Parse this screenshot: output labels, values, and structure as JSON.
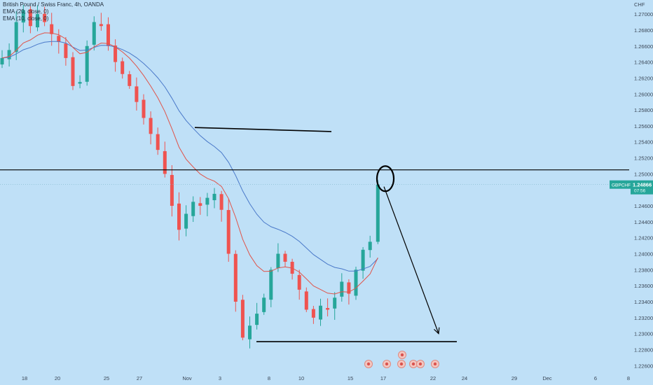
{
  "legend": {
    "title": "British Pound / Swiss Franc, 4h, OANDA",
    "ema20": "EMA (20, close, 0)",
    "ema10": "EMA (10, close, 0)"
  },
  "price_axis": {
    "currency": "CHF",
    "ticks": [
      "1.27000",
      "1.26800",
      "1.26600",
      "1.26400",
      "1.26200",
      "1.26000",
      "1.25800",
      "1.25600",
      "1.25400",
      "1.25200",
      "1.25000",
      "1.24800",
      "1.24600",
      "1.24400",
      "1.24200",
      "1.24000",
      "1.23800",
      "1.23600",
      "1.23400",
      "1.23200",
      "1.23000",
      "1.22800",
      "1.22600"
    ]
  },
  "time_axis": {
    "ticks": [
      "18",
      "20",
      "25",
      "27",
      "Nov",
      "3",
      "8",
      "10",
      "15",
      "17",
      "22",
      "24",
      "29",
      "Dec",
      "6",
      "8"
    ]
  },
  "price_label": {
    "symbol": "GBPCHF",
    "price": "1.24866",
    "countdown": "07:56"
  },
  "colors": {
    "background": "#bfe0f7",
    "up": "#26a69a",
    "down": "#ef5350",
    "ema20": "#4a79c9",
    "ema10": "#e0544a",
    "label": "#26a69a",
    "annotation": "#000000"
  },
  "chart_data": {
    "type": "candlestick",
    "title": "British Pound / Swiss Franc, 4h, OANDA",
    "symbol": "GBPCHF",
    "timeframe": "4h",
    "ylim": [
      1.2255,
      1.2715
    ],
    "grid": false,
    "current_price": 1.24866,
    "x_tick_labels": [
      "18",
      "20",
      "25",
      "27",
      "Nov",
      "3",
      "8",
      "10",
      "15",
      "17",
      "22",
      "24",
      "29",
      "Dec",
      "6",
      "8"
    ],
    "series": [
      {
        "name": "EMA (20, close, 0)",
        "color": "#4a79c9"
      },
      {
        "name": "EMA (10, close, 0)",
        "color": "#e0544a"
      }
    ],
    "close_trend": [
      1.2645,
      1.2655,
      1.269,
      1.2705,
      1.2685,
      1.27,
      1.269,
      1.2675,
      1.2665,
      1.2645,
      1.261,
      1.2615,
      1.266,
      1.269,
      1.2685,
      1.266,
      1.264,
      1.2625,
      1.261,
      1.259,
      1.257,
      1.255,
      1.253,
      1.25,
      1.246,
      1.243,
      1.245,
      1.2465,
      1.246,
      1.247,
      1.2475,
      1.2455,
      1.24,
      1.234,
      1.2295,
      1.231,
      1.2325,
      1.2345,
      1.238,
      1.24,
      1.239,
      1.2375,
      1.2355,
      1.233,
      1.232,
      1.2335,
      1.233,
      1.2345,
      1.2365,
      1.235,
      1.238,
      1.2405,
      1.2415
    ],
    "last_candle": {
      "open": 1.2415,
      "high": 1.2492,
      "low": 1.2412,
      "close": 1.24866
    },
    "annotations": [
      {
        "type": "horizontal_line",
        "price": 1.2505
      },
      {
        "type": "trend_line",
        "from_price": 1.2558,
        "to_price": 1.2553
      },
      {
        "type": "trend_line",
        "from_price": 1.229,
        "to_price": 1.229
      },
      {
        "type": "ellipse",
        "price": 1.2494
      },
      {
        "type": "arrow",
        "from_price": 1.2484,
        "to_price": 1.23
      }
    ]
  }
}
